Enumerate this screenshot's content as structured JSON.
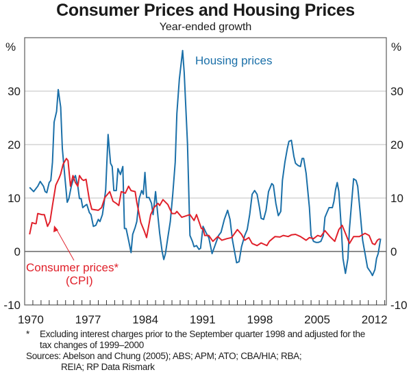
{
  "chart_data": {
    "type": "line",
    "title": "Consumer Prices and Housing Prices",
    "subtitle": "Year-ended growth",
    "ylabel_left": "%",
    "ylabel_right": "%",
    "xlabel": "",
    "ylim": [
      -10,
      40
    ],
    "xlim": [
      1969,
      2013.2
    ],
    "yticks": [
      -10,
      0,
      10,
      20,
      30
    ],
    "xticks": [
      1970,
      1977,
      1984,
      1991,
      1998,
      2005,
      2012
    ],
    "grid": true,
    "colors": {
      "housing": "#1a6fa8",
      "cpi": "#e0202a",
      "grid": "#cccccc",
      "zero": "#1a1a1a"
    },
    "annotations": {
      "housing_label": "Housing prices",
      "cpi_label_1": "Consumer prices*",
      "cpi_label_2": "(CPI)"
    },
    "series": [
      {
        "name": "Housing prices",
        "points": [
          [
            1969.6,
            12.0
          ],
          [
            1970.1,
            11.2
          ],
          [
            1970.6,
            12.2
          ],
          [
            1970.9,
            13.1
          ],
          [
            1971.3,
            12.2
          ],
          [
            1971.5,
            11.2
          ],
          [
            1971.7,
            11.0
          ],
          [
            1972.0,
            12.9
          ],
          [
            1972.2,
            13.3
          ],
          [
            1972.4,
            16.7
          ],
          [
            1972.6,
            24.2
          ],
          [
            1972.9,
            26.2
          ],
          [
            1973.1,
            30.3
          ],
          [
            1973.4,
            27.0
          ],
          [
            1973.6,
            19.3
          ],
          [
            1973.9,
            14.2
          ],
          [
            1974.2,
            9.2
          ],
          [
            1974.4,
            9.9
          ],
          [
            1974.7,
            12.2
          ],
          [
            1974.9,
            13.3
          ],
          [
            1975.2,
            14.2
          ],
          [
            1975.5,
            12.2
          ],
          [
            1975.7,
            9.9
          ],
          [
            1975.9,
            9.9
          ],
          [
            1976.1,
            8.2
          ],
          [
            1976.4,
            8.6
          ],
          [
            1976.6,
            8.8
          ],
          [
            1976.9,
            7.3
          ],
          [
            1977.1,
            6.9
          ],
          [
            1977.4,
            4.7
          ],
          [
            1977.7,
            4.9
          ],
          [
            1978.0,
            6.0
          ],
          [
            1978.2,
            5.6
          ],
          [
            1978.5,
            6.9
          ],
          [
            1978.7,
            9.0
          ],
          [
            1978.9,
            11.6
          ],
          [
            1979.2,
            21.9
          ],
          [
            1979.5,
            16.5
          ],
          [
            1979.7,
            15.9
          ],
          [
            1979.9,
            11.4
          ],
          [
            1980.2,
            11.4
          ],
          [
            1980.4,
            15.5
          ],
          [
            1980.7,
            14.4
          ],
          [
            1981.0,
            15.9
          ],
          [
            1981.2,
            4.3
          ],
          [
            1981.4,
            4.3
          ],
          [
            1981.7,
            2.1
          ],
          [
            1982.0,
            -0.2
          ],
          [
            1982.2,
            3.2
          ],
          [
            1982.5,
            4.5
          ],
          [
            1982.7,
            5.6
          ],
          [
            1983.0,
            9.9
          ],
          [
            1983.3,
            11.4
          ],
          [
            1983.5,
            10.7
          ],
          [
            1983.7,
            14.8
          ],
          [
            1983.9,
            10.1
          ],
          [
            1984.2,
            10.1
          ],
          [
            1984.5,
            9.0
          ],
          [
            1984.7,
            6.9
          ],
          [
            1985.0,
            11.2
          ],
          [
            1985.3,
            6.4
          ],
          [
            1985.5,
            3.4
          ],
          [
            1985.8,
            0.0
          ],
          [
            1986.0,
            -1.5
          ],
          [
            1986.2,
            -0.4
          ],
          [
            1986.5,
            2.6
          ],
          [
            1986.8,
            5.6
          ],
          [
            1987.1,
            10.7
          ],
          [
            1987.4,
            16.7
          ],
          [
            1987.6,
            25.8
          ],
          [
            1987.9,
            32.2
          ],
          [
            1988.3,
            37.6
          ],
          [
            1988.5,
            33.5
          ],
          [
            1988.9,
            20.2
          ],
          [
            1989.2,
            3.0
          ],
          [
            1989.5,
            1.9
          ],
          [
            1989.7,
            0.9
          ],
          [
            1990.0,
            1.1
          ],
          [
            1990.3,
            0.4
          ],
          [
            1990.5,
            0.6
          ],
          [
            1990.8,
            4.7
          ],
          [
            1991.2,
            3.4
          ],
          [
            1991.5,
            2.6
          ],
          [
            1991.9,
            -0.4
          ],
          [
            1992.3,
            1.3
          ],
          [
            1992.7,
            3.0
          ],
          [
            1993.0,
            3.6
          ],
          [
            1993.4,
            6.0
          ],
          [
            1993.8,
            7.7
          ],
          [
            1994.1,
            6.0
          ],
          [
            1994.4,
            2.1
          ],
          [
            1994.9,
            -2.1
          ],
          [
            1995.2,
            -1.9
          ],
          [
            1995.5,
            0.9
          ],
          [
            1995.9,
            3.0
          ],
          [
            1996.2,
            4.1
          ],
          [
            1996.5,
            6.9
          ],
          [
            1996.8,
            10.7
          ],
          [
            1997.1,
            11.4
          ],
          [
            1997.4,
            10.7
          ],
          [
            1997.7,
            8.2
          ],
          [
            1997.9,
            6.2
          ],
          [
            1998.2,
            6.0
          ],
          [
            1998.5,
            7.7
          ],
          [
            1998.8,
            11.2
          ],
          [
            1999.2,
            12.7
          ],
          [
            1999.4,
            12.4
          ],
          [
            1999.7,
            9.0
          ],
          [
            2000.0,
            6.7
          ],
          [
            2000.3,
            7.5
          ],
          [
            2000.5,
            13.3
          ],
          [
            2000.8,
            16.7
          ],
          [
            2001.1,
            19.3
          ],
          [
            2001.3,
            20.6
          ],
          [
            2001.6,
            20.8
          ],
          [
            2001.9,
            17.8
          ],
          [
            2002.1,
            16.5
          ],
          [
            2002.4,
            16.1
          ],
          [
            2002.7,
            15.9
          ],
          [
            2002.9,
            17.4
          ],
          [
            2003.1,
            17.4
          ],
          [
            2003.4,
            14.6
          ],
          [
            2003.8,
            8.2
          ],
          [
            2004.0,
            3.0
          ],
          [
            2004.3,
            1.9
          ],
          [
            2004.6,
            1.7
          ],
          [
            2004.9,
            1.7
          ],
          [
            2005.2,
            1.9
          ],
          [
            2005.5,
            3.0
          ],
          [
            2005.7,
            6.4
          ],
          [
            2006.0,
            7.5
          ],
          [
            2006.2,
            8.2
          ],
          [
            2006.6,
            8.2
          ],
          [
            2006.8,
            9.4
          ],
          [
            2007.0,
            11.6
          ],
          [
            2007.2,
            12.9
          ],
          [
            2007.4,
            11.2
          ],
          [
            2007.7,
            4.3
          ],
          [
            2007.9,
            -1.3
          ],
          [
            2008.2,
            -4.1
          ],
          [
            2008.5,
            -1.3
          ],
          [
            2008.7,
            4.3
          ],
          [
            2009.0,
            9.9
          ],
          [
            2009.2,
            13.6
          ],
          [
            2009.5,
            13.3
          ],
          [
            2009.7,
            12.2
          ],
          [
            2010.0,
            7.3
          ],
          [
            2010.3,
            2.1
          ],
          [
            2010.6,
            -0.4
          ],
          [
            2010.9,
            -3.0
          ],
          [
            2011.3,
            -3.9
          ],
          [
            2011.5,
            -4.5
          ],
          [
            2011.8,
            -3.4
          ],
          [
            2012.0,
            -1.3
          ],
          [
            2012.2,
            -0.4
          ],
          [
            2012.5,
            2.4
          ]
        ]
      },
      {
        "name": "Consumer prices* (CPI)",
        "points": [
          [
            1969.6,
            3.2
          ],
          [
            1969.9,
            5.4
          ],
          [
            1970.3,
            5.2
          ],
          [
            1970.4,
            5.2
          ],
          [
            1970.6,
            7.1
          ],
          [
            1971.1,
            6.9
          ],
          [
            1971.4,
            6.9
          ],
          [
            1971.8,
            4.7
          ],
          [
            1972.1,
            5.6
          ],
          [
            1972.4,
            8.6
          ],
          [
            1972.8,
            12.4
          ],
          [
            1973.2,
            13.7
          ],
          [
            1973.4,
            14.5
          ],
          [
            1973.7,
            16.3
          ],
          [
            1974.1,
            17.4
          ],
          [
            1974.3,
            17.0
          ],
          [
            1974.6,
            12.2
          ],
          [
            1974.9,
            14.2
          ],
          [
            1975.2,
            12.9
          ],
          [
            1975.5,
            12.2
          ],
          [
            1975.7,
            14.2
          ],
          [
            1976.0,
            13.5
          ],
          [
            1976.2,
            13.3
          ],
          [
            1976.5,
            13.5
          ],
          [
            1976.9,
            9.7
          ],
          [
            1977.2,
            7.9
          ],
          [
            1978.0,
            7.7
          ],
          [
            1978.4,
            8.2
          ],
          [
            1978.8,
            10.1
          ],
          [
            1979.4,
            11.2
          ],
          [
            1979.8,
            9.4
          ],
          [
            1980.2,
            9.0
          ],
          [
            1980.5,
            8.6
          ],
          [
            1980.8,
            11.2
          ],
          [
            1981.3,
            10.9
          ],
          [
            1981.7,
            12.2
          ],
          [
            1982.0,
            11.4
          ],
          [
            1982.5,
            11.2
          ],
          [
            1982.7,
            9.2
          ],
          [
            1983.2,
            5.4
          ],
          [
            1983.6,
            3.9
          ],
          [
            1983.9,
            2.6
          ],
          [
            1984.4,
            6.9
          ],
          [
            1984.8,
            8.2
          ],
          [
            1985.3,
            9.0
          ],
          [
            1985.5,
            8.6
          ],
          [
            1985.9,
            9.7
          ],
          [
            1986.5,
            8.8
          ],
          [
            1987.0,
            7.1
          ],
          [
            1987.4,
            7.1
          ],
          [
            1987.6,
            7.5
          ],
          [
            1988.2,
            6.4
          ],
          [
            1989.2,
            6.9
          ],
          [
            1989.7,
            5.8
          ],
          [
            1990.0,
            6.9
          ],
          [
            1990.6,
            4.3
          ],
          [
            1990.8,
            4.3
          ],
          [
            1991.0,
            3.0
          ],
          [
            1991.5,
            3.0
          ],
          [
            1992.0,
            1.9
          ],
          [
            1992.6,
            2.8
          ],
          [
            1993.1,
            2.1
          ],
          [
            1993.7,
            2.4
          ],
          [
            1994.3,
            2.6
          ],
          [
            1995.0,
            4.1
          ],
          [
            1995.5,
            3.2
          ],
          [
            1995.9,
            2.1
          ],
          [
            1996.4,
            2.6
          ],
          [
            1996.8,
            1.5
          ],
          [
            1997.4,
            1.1
          ],
          [
            1997.9,
            1.6
          ],
          [
            1998.6,
            1.1
          ],
          [
            1998.9,
            1.9
          ],
          [
            1999.6,
            2.8
          ],
          [
            2000.2,
            2.7
          ],
          [
            2000.6,
            3.0
          ],
          [
            2001.2,
            2.8
          ],
          [
            2001.6,
            3.1
          ],
          [
            2002.1,
            3.2
          ],
          [
            2002.7,
            2.8
          ],
          [
            2003.4,
            2.1
          ],
          [
            2003.8,
            2.6
          ],
          [
            2004.3,
            2.4
          ],
          [
            2004.8,
            3.0
          ],
          [
            2005.2,
            2.8
          ],
          [
            2005.7,
            3.9
          ],
          [
            2006.3,
            2.8
          ],
          [
            2006.9,
            1.9
          ],
          [
            2007.4,
            4.1
          ],
          [
            2007.8,
            4.9
          ],
          [
            2008.2,
            3.4
          ],
          [
            2008.7,
            1.5
          ],
          [
            2009.2,
            2.8
          ],
          [
            2009.9,
            2.8
          ],
          [
            2010.6,
            3.4
          ],
          [
            2011.1,
            3.0
          ],
          [
            2011.5,
            1.5
          ],
          [
            2011.8,
            1.3
          ],
          [
            2012.1,
            2.1
          ],
          [
            2012.4,
            2.4
          ]
        ]
      }
    ]
  },
  "notes": {
    "footnote_marker": "*",
    "footnote": "Excluding interest charges prior to the September quarter 1998 and adjusted for the tax changes of 1999–2000",
    "sources_1": "Sources: Abelson and Chung (2005); ABS; APM; ATO; CBA/HIA; RBA;",
    "sources_2": "REIA; RP Data Rismark"
  }
}
